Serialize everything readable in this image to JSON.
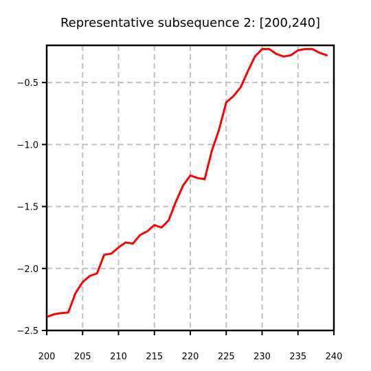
{
  "chart_data": {
    "type": "line",
    "title": "Representative subsequence 2: [200,240]",
    "xlabel": "",
    "ylabel": "",
    "xlim": [
      200,
      240
    ],
    "ylim": [
      -2.5,
      -0.2
    ],
    "x_ticks": [
      200,
      205,
      210,
      215,
      220,
      225,
      230,
      235,
      240
    ],
    "y_ticks": [
      -2.5,
      -2.0,
      -1.5,
      -1.0,
      -0.5
    ],
    "x_tick_labels": [
      "200",
      "205",
      "210",
      "215",
      "220",
      "225",
      "230",
      "235",
      "240"
    ],
    "y_tick_labels": [
      "−2.5",
      "−2.0",
      "−1.5",
      "−1.0",
      "−0.5"
    ],
    "grid": true,
    "series": [
      {
        "color": "#ff0000",
        "x": [
          200,
          201,
          202,
          203,
          204,
          205,
          206,
          207,
          208,
          209,
          210,
          211,
          212,
          213,
          214,
          215,
          216,
          217,
          218,
          219,
          220,
          221,
          222,
          223,
          224,
          225,
          226,
          227,
          228,
          229,
          230,
          231,
          232,
          233,
          234,
          235,
          236,
          237,
          238,
          239
        ],
        "y": [
          -2.39,
          -2.37,
          -2.36,
          -2.355,
          -2.2,
          -2.11,
          -2.06,
          -2.04,
          -1.89,
          -1.88,
          -1.83,
          -1.79,
          -1.8,
          -1.73,
          -1.7,
          -1.65,
          -1.67,
          -1.61,
          -1.46,
          -1.33,
          -1.25,
          -1.27,
          -1.28,
          -1.05,
          -0.88,
          -0.66,
          -0.61,
          -0.54,
          -0.41,
          -0.29,
          -0.23,
          -0.23,
          -0.27,
          -0.29,
          -0.28,
          -0.24,
          -0.23,
          -0.23,
          -0.26,
          -0.28
        ]
      }
    ]
  }
}
